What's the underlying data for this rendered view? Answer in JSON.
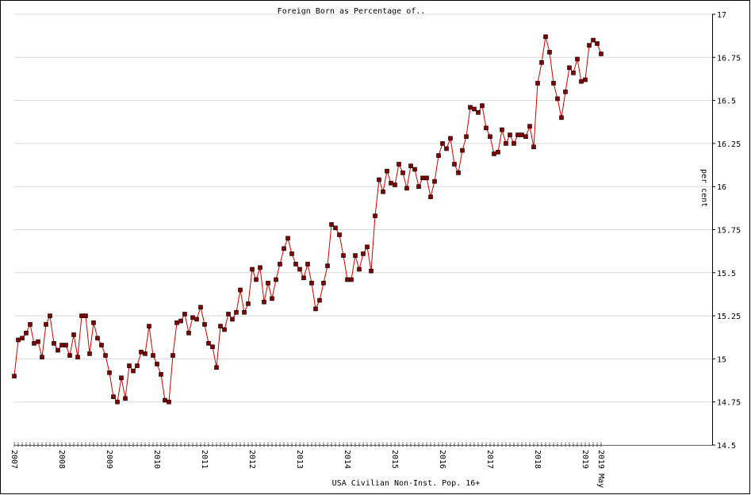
{
  "chart_data": {
    "type": "line",
    "title": "Foreign Born as Percentage of..",
    "y_label": "per cent",
    "x_label": "USA Civilian Non-Inst. Pop. 16+",
    "ylim": [
      14.5,
      17
    ],
    "yticks": [
      14.5,
      14.75,
      15,
      15.25,
      15.5,
      15.75,
      16,
      16.25,
      16.5,
      16.75,
      17
    ],
    "grid": true,
    "categories": [
      "2007",
      null,
      null,
      null,
      null,
      null,
      null,
      null,
      null,
      null,
      null,
      null,
      "2008",
      null,
      null,
      null,
      null,
      null,
      null,
      null,
      null,
      null,
      null,
      null,
      "2009",
      null,
      null,
      null,
      null,
      null,
      null,
      null,
      null,
      null,
      null,
      null,
      "2010",
      null,
      null,
      null,
      null,
      null,
      null,
      null,
      null,
      null,
      null,
      null,
      "2011",
      null,
      null,
      null,
      null,
      null,
      null,
      null,
      null,
      null,
      null,
      null,
      "2012",
      null,
      null,
      null,
      null,
      null,
      null,
      null,
      null,
      null,
      null,
      null,
      "2013",
      null,
      null,
      null,
      null,
      null,
      null,
      null,
      null,
      null,
      null,
      null,
      "2014",
      null,
      null,
      null,
      null,
      null,
      null,
      null,
      null,
      null,
      null,
      null,
      "2015",
      null,
      null,
      null,
      null,
      null,
      null,
      null,
      null,
      null,
      null,
      null,
      "2016",
      null,
      null,
      null,
      null,
      null,
      null,
      null,
      null,
      null,
      null,
      null,
      "2017",
      null,
      null,
      null,
      null,
      null,
      null,
      null,
      null,
      null,
      null,
      null,
      "2018",
      null,
      null,
      null,
      null,
      null,
      null,
      null,
      null,
      null,
      null,
      null,
      "2019",
      null,
      null,
      null,
      "2019 May"
    ],
    "series": [
      {
        "name": "Foreign Born as Percentage of..",
        "color": "#cc0000",
        "marker_color": "#800000",
        "values": [
          14.9,
          15.11,
          15.12,
          15.15,
          15.2,
          15.09,
          15.1,
          15.01,
          15.2,
          15.25,
          15.09,
          15.05,
          15.08,
          15.08,
          15.02,
          15.14,
          15.01,
          15.25,
          15.25,
          15.03,
          15.21,
          15.12,
          15.08,
          15.02,
          14.92,
          14.78,
          14.75,
          14.89,
          14.77,
          14.96,
          14.93,
          14.96,
          15.04,
          15.03,
          15.19,
          15.02,
          14.97,
          14.91,
          14.76,
          14.75,
          15.02,
          15.21,
          15.22,
          15.26,
          15.15,
          15.24,
          15.23,
          15.3,
          15.2,
          15.09,
          15.07,
          14.95,
          15.19,
          15.17,
          15.26,
          15.23,
          15.27,
          15.4,
          15.27,
          15.32,
          15.52,
          15.46,
          15.53,
          15.33,
          15.44,
          15.35,
          15.46,
          15.55,
          15.64,
          15.7,
          15.61,
          15.55,
          15.52,
          15.47,
          15.55,
          15.44,
          15.29,
          15.34,
          15.44,
          15.54,
          15.78,
          15.76,
          15.72,
          15.6,
          15.46,
          15.46,
          15.6,
          15.52,
          15.61,
          15.65,
          15.51,
          15.83,
          16.04,
          15.97,
          16.09,
          16.02,
          16.01,
          16.13,
          16.08,
          15.99,
          16.12,
          16.1,
          16.0,
          16.05,
          16.05,
          15.94,
          16.03,
          16.18,
          16.25,
          16.22,
          16.28,
          16.13,
          16.08,
          16.21,
          16.29,
          16.46,
          16.45,
          16.43,
          16.47,
          16.34,
          16.29,
          16.19,
          16.2,
          16.33,
          16.25,
          16.3,
          16.25,
          16.3,
          16.3,
          16.29,
          16.35,
          16.23,
          16.6,
          16.72,
          16.87,
          16.78,
          16.6,
          16.51,
          16.4,
          16.55,
          16.69,
          16.66,
          16.74,
          16.61,
          16.62,
          16.82,
          16.85,
          16.83,
          16.77
        ]
      }
    ]
  }
}
